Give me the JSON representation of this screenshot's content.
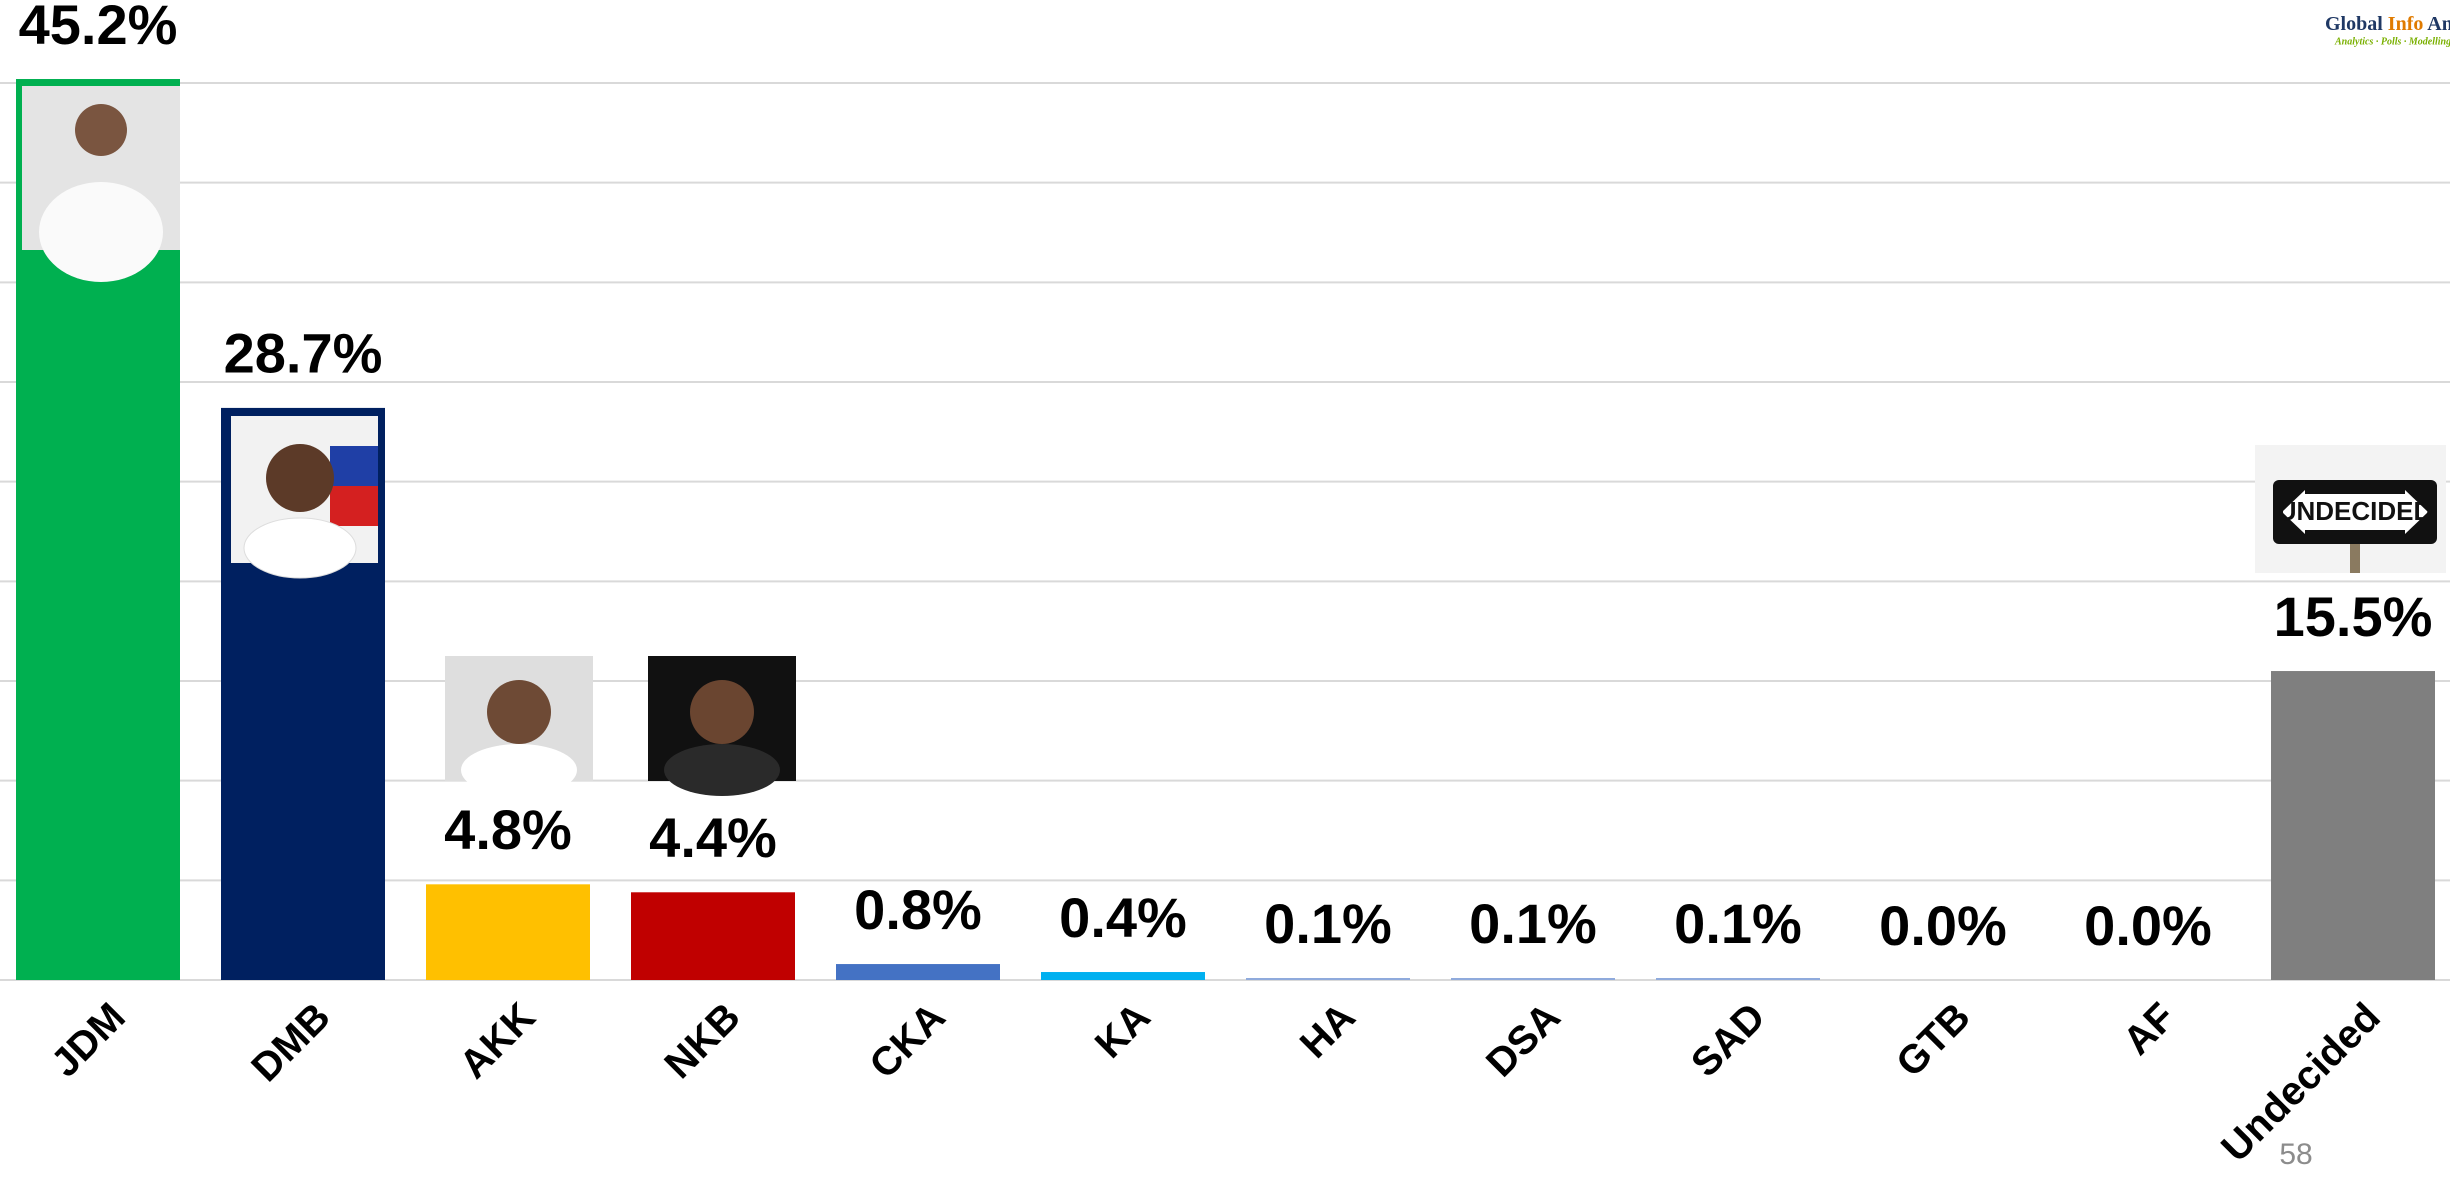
{
  "chart_data": {
    "type": "bar",
    "categories": [
      "JDM",
      "DMB",
      "AKK",
      "NKB",
      "CKA",
      "KA",
      "HA",
      "DSA",
      "SAD",
      "GTB",
      "AF",
      "Undecided"
    ],
    "values": [
      45.2,
      28.7,
      4.8,
      4.4,
      0.8,
      0.4,
      0.1,
      0.1,
      0.1,
      0.0,
      0.0,
      15.5
    ],
    "value_labels": [
      "45.2%",
      "28.7%",
      "4.8%",
      "4.4%",
      "0.8%",
      "0.4%",
      "0.1%",
      "0.1%",
      "0.1%",
      "0.0%",
      "0.0%",
      "15.5%"
    ],
    "colors": [
      "#00b050",
      "#002060",
      "#ffc000",
      "#c00000",
      "#4472c4",
      "#00b0f0",
      "#8faadc",
      "#8faadc",
      "#8faadc",
      "#8faadc",
      "#8faadc",
      "#7f7f7f"
    ],
    "ylim": [
      0,
      45
    ],
    "yticks": [
      0,
      5,
      10,
      15,
      20,
      25,
      30,
      35,
      40,
      45
    ],
    "grid": true
  },
  "sign_text": "UNDECIDED",
  "logo": {
    "parts": [
      "Global",
      "Info",
      "Analytics"
    ],
    "tagline": "Analytics · Polls · Modelling"
  },
  "page_number": "58"
}
